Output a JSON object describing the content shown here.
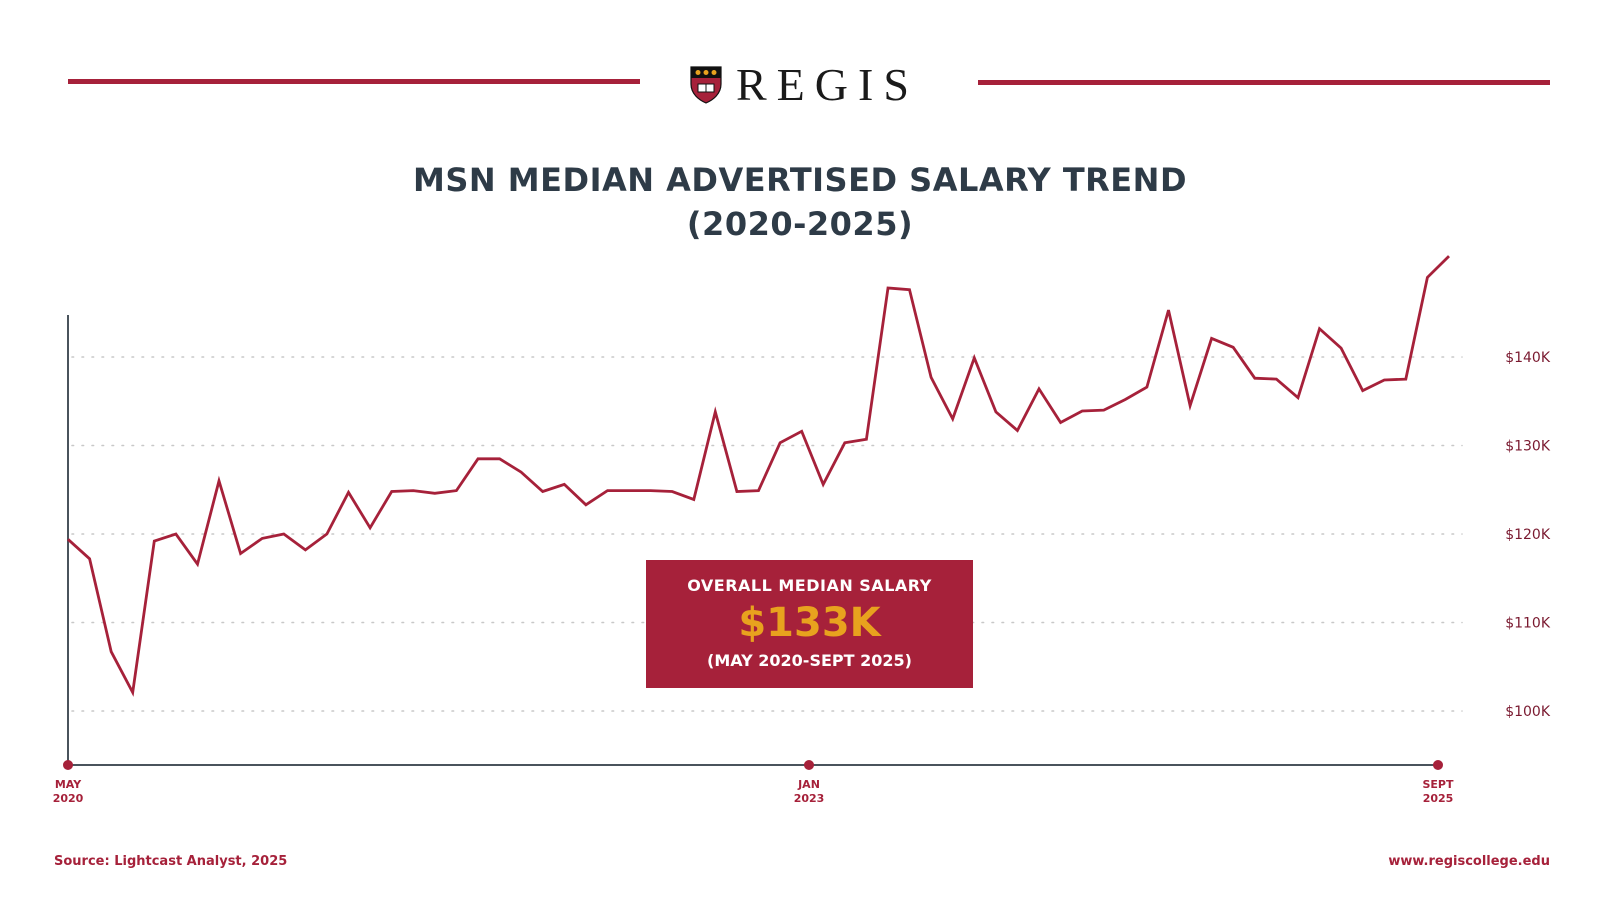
{
  "header": {
    "brand": "REGIS",
    "title_line1": "MSN MEDIAN ADVERTISED SALARY TREND",
    "title_line2": "(2020-2025)"
  },
  "callout": {
    "label": "OVERALL MEDIAN SALARY",
    "value": "$133K",
    "range": "(MAY 2020-SEPT 2025)"
  },
  "footer": {
    "source": "Source: Lightcast Analyst, 2025",
    "url": "www.regiscollege.edu"
  },
  "colors": {
    "brand_red": "#a6213a",
    "title_slate": "#2e3b47",
    "gold": "#e8a21e",
    "grid": "#c8c8c8"
  },
  "chart_data": {
    "type": "line",
    "title": "MSN MEDIAN ADVERTISED SALARY TREND (2020-2025)",
    "xlabel": "",
    "ylabel": "Median Advertised Salary",
    "ylim": [
      95,
      152
    ],
    "y_ticks": [
      100,
      110,
      120,
      130,
      140
    ],
    "y_tick_labels": [
      "$100K",
      "$110K",
      "$120K",
      "$130K",
      "$140K"
    ],
    "x_tick_labels": [
      {
        "label": "MAY\n2020",
        "index": 0
      },
      {
        "label": "JAN\n2023",
        "index": 32
      },
      {
        "label": "SEPT\n2025",
        "index": 64
      }
    ],
    "grid": "horizontal dotted",
    "legend": "none",
    "series": [
      {
        "name": "Median Advertised Salary ($K)",
        "values": [
          119.4,
          117.2,
          106.7,
          102.1,
          119.2,
          120.0,
          116.6,
          126.0,
          117.8,
          119.5,
          120.0,
          118.2,
          120.0,
          124.7,
          120.7,
          124.8,
          124.9,
          124.6,
          124.9,
          128.5,
          128.5,
          127.0,
          124.8,
          125.6,
          123.3,
          124.9,
          124.9,
          124.9,
          124.8,
          123.9,
          133.8,
          124.8,
          124.9,
          130.3,
          131.6,
          125.6,
          130.3,
          130.7,
          147.8,
          147.6,
          137.7,
          133.0,
          139.9,
          133.8,
          131.7,
          136.4,
          132.6,
          133.9,
          134.0,
          135.2,
          136.6,
          145.3,
          134.5,
          142.1,
          141.1,
          137.6,
          137.5,
          135.4,
          143.2,
          141.0,
          136.2,
          137.4,
          137.5,
          149.0,
          151.4
        ]
      }
    ],
    "annotation": "OVERALL MEDIAN SALARY $133K (MAY 2020-SEPT 2025)"
  }
}
